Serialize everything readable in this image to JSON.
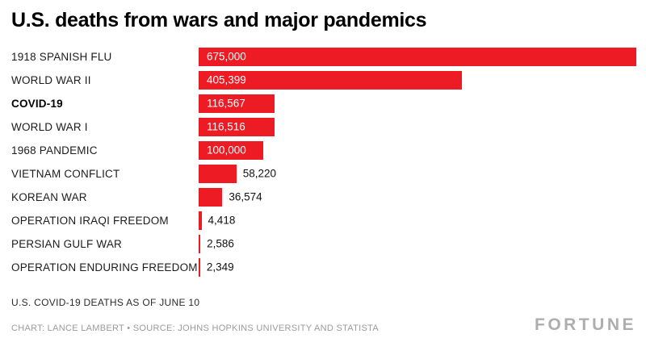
{
  "chart_data": {
    "type": "bar",
    "orientation": "horizontal",
    "title": "U.S. deaths from wars and major pandemics",
    "categories": [
      "1918 SPANISH FLU",
      "WORLD WAR II",
      "COVID-19",
      "WORLD WAR I",
      "1968 PANDEMIC",
      "VIETNAM CONFLICT",
      "KOREAN WAR",
      "OPERATION IRAQI FREEDOM",
      "PERSIAN GULF WAR",
      "OPERATION ENDURING FREEDOM"
    ],
    "values": [
      675000,
      405399,
      116567,
      116516,
      100000,
      58220,
      36574,
      4418,
      2586,
      2349
    ],
    "value_labels": [
      "675,000",
      "405,399",
      "116,567",
      "116,516",
      "100,000",
      "58,220",
      "36,574",
      "4,418",
      "2,586",
      "2,349"
    ],
    "bold_categories": [
      "COVID-19"
    ],
    "xlim": [
      0,
      675000
    ],
    "bar_color": "#ed1b24",
    "grid": false,
    "legend": false
  },
  "footer": {
    "note": "U.S. COVID-19 DEATHS AS OF JUNE 10",
    "credit": "CHART: LANCE LAMBERT • SOURCE: JOHNS HOPKINS UNIVERSITY AND STATISTA",
    "logo": "FORTUNE"
  }
}
